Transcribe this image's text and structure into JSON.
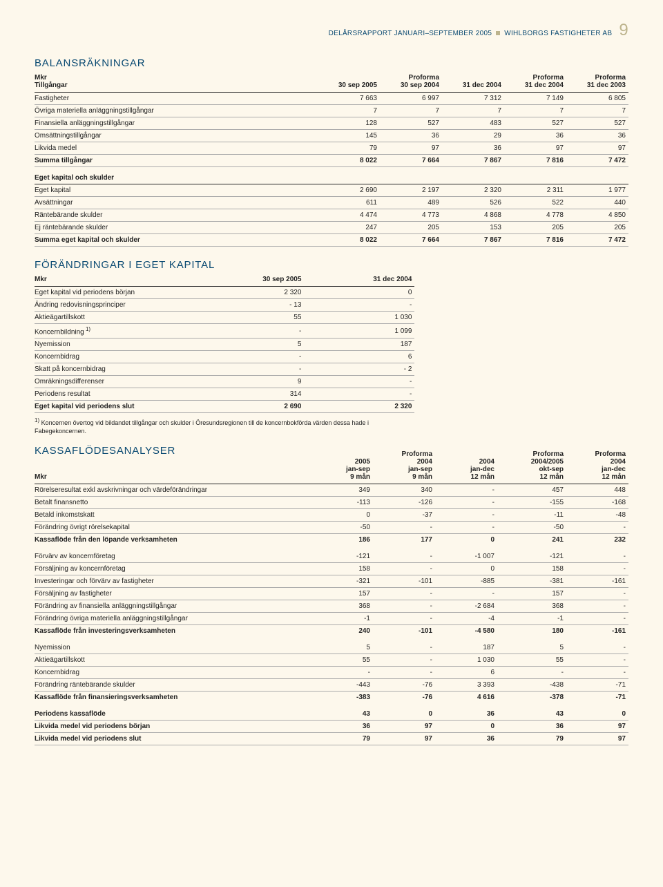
{
  "header": {
    "left": "DELÅRSRAPPORT JANUARI–SEPTEMBER 2005",
    "right": "WIHLBORGS FASTIGHETER AB",
    "page": "9"
  },
  "balans": {
    "title": "BALANSRÄKNINGAR",
    "head": {
      "r1": [
        "Mkr",
        "",
        "Proforma",
        "",
        "Proforma",
        "Proforma"
      ],
      "r2": [
        "Tillgångar",
        "30 sep 2005",
        "30 sep 2004",
        "31 dec 2004",
        "31 dec 2004",
        "31 dec 2003"
      ]
    },
    "rows": [
      {
        "l": "Fastigheter",
        "v": [
          "7 663",
          "6 997",
          "7 312",
          "7 149",
          "6 805"
        ]
      },
      {
        "l": "Övriga materiella anläggningstillgångar",
        "v": [
          "7",
          "7",
          "7",
          "7",
          "7"
        ]
      },
      {
        "l": "Finansiella anläggningstillgångar",
        "v": [
          "128",
          "527",
          "483",
          "527",
          "527"
        ]
      },
      {
        "l": "Omsättningstillgångar",
        "v": [
          "145",
          "36",
          "29",
          "36",
          "36"
        ]
      },
      {
        "l": "Likvida medel",
        "v": [
          "79",
          "97",
          "36",
          "97",
          "97"
        ]
      },
      {
        "l": "Summa tillgångar",
        "v": [
          "8 022",
          "7 664",
          "7 867",
          "7 816",
          "7 472"
        ],
        "bold": true
      }
    ],
    "section2_header": "Eget kapital och skulder",
    "rows2": [
      {
        "l": "Eget kapital",
        "v": [
          "2 690",
          "2 197",
          "2 320",
          "2 311",
          "1 977"
        ]
      },
      {
        "l": "Avsättningar",
        "v": [
          "611",
          "489",
          "526",
          "522",
          "440"
        ]
      },
      {
        "l": "Räntebärande skulder",
        "v": [
          "4 474",
          "4 773",
          "4 868",
          "4 778",
          "4 850"
        ]
      },
      {
        "l": "Ej räntebärande skulder",
        "v": [
          "247",
          "205",
          "153",
          "205",
          "205"
        ]
      },
      {
        "l": "Summa eget kapital och skulder",
        "v": [
          "8 022",
          "7 664",
          "7 867",
          "7 816",
          "7 472"
        ],
        "bold": true
      }
    ]
  },
  "forandringar": {
    "title": "FÖRÄNDRINGAR I EGET KAPITAL",
    "head": [
      "Mkr",
      "30 sep 2005",
      "31 dec 2004"
    ],
    "rows": [
      {
        "l": "Eget kapital vid periodens början",
        "v": [
          "2 320",
          "0"
        ]
      },
      {
        "l": "Ändring redovisningsprinciper",
        "v": [
          "- 13",
          "-"
        ]
      },
      {
        "l": "Aktieägartillskott",
        "v": [
          "55",
          "1 030"
        ]
      },
      {
        "l": "Koncernbildning",
        "sup": "1)",
        "v": [
          "-",
          "1 099"
        ]
      },
      {
        "l": "Nyemission",
        "v": [
          "5",
          "187"
        ]
      },
      {
        "l": "Koncernbidrag",
        "v": [
          "-",
          "6"
        ]
      },
      {
        "l": "Skatt på koncernbidrag",
        "v": [
          "-",
          "- 2"
        ]
      },
      {
        "l": "Omräkningsdifferenser",
        "v": [
          "9",
          "-"
        ]
      },
      {
        "l": "Periodens resultat",
        "v": [
          "314",
          "-"
        ]
      },
      {
        "l": "Eget kapital vid periodens slut",
        "v": [
          "2 690",
          "2 320"
        ],
        "bold": true
      }
    ],
    "footnote_sup": "1)",
    "footnote": "Koncernen övertog vid bildandet tillgångar och skulder i Öresundsregionen till de koncernbokförda värden dessa hade i Fabegekoncernen."
  },
  "kassa": {
    "title": "KASSAFLÖDESANALYSER",
    "head": {
      "r1": [
        "",
        "2005",
        "Proforma",
        "",
        "Proforma",
        "Proforma"
      ],
      "r2": [
        "",
        "jan-sep",
        "2004",
        "2004",
        "2004/2005",
        "2004"
      ],
      "r3": [
        "",
        "9 mån",
        "jan-sep",
        "jan-dec",
        "okt-sep",
        "jan-dec"
      ],
      "r4": [
        "Mkr",
        "",
        "9 mån",
        "12 mån",
        "12 mån",
        "12 mån"
      ]
    },
    "rows": [
      {
        "l": "Rörelseresultat exkl avskrivningar och värdeförändringar",
        "v": [
          "349",
          "340",
          "-",
          "457",
          "448"
        ]
      },
      {
        "l": "Betalt finansnetto",
        "v": [
          "-113",
          "-126",
          "-",
          "-155",
          "-168"
        ]
      },
      {
        "l": "Betald inkomstskatt",
        "v": [
          "0",
          "-37",
          "-",
          "-11",
          "-48"
        ]
      },
      {
        "l": "Förändring övrigt rörelsekapital",
        "v": [
          "-50",
          "-",
          "-",
          "-50",
          "-"
        ]
      },
      {
        "l": "Kassaflöde från den löpande verksamheten",
        "v": [
          "186",
          "177",
          "0",
          "241",
          "232"
        ],
        "bold": true,
        "gap": true
      },
      {
        "l": "Förvärv av koncernföretag",
        "v": [
          "-121",
          "-",
          "-1 007",
          "-121",
          "-"
        ]
      },
      {
        "l": "Försäljning av koncernföretag",
        "v": [
          "158",
          "-",
          "0",
          "158",
          "-"
        ]
      },
      {
        "l": "Investeringar och förvärv av fastigheter",
        "v": [
          "-321",
          "-101",
          "-885",
          "-381",
          "-161"
        ]
      },
      {
        "l": "Försäljning av fastigheter",
        "v": [
          "157",
          "-",
          "-",
          "157",
          "-"
        ]
      },
      {
        "l": "Förändring av finansiella anläggningstillgångar",
        "v": [
          "368",
          "-",
          "-2 684",
          "368",
          "-"
        ]
      },
      {
        "l": "Förändring övriga materiella anläggningstillgångar",
        "v": [
          "-1",
          "-",
          "-4",
          "-1",
          "-"
        ]
      },
      {
        "l": "Kassaflöde från investeringsverksamheten",
        "v": [
          "240",
          "-101",
          "-4 580",
          "180",
          "-161"
        ],
        "bold": true,
        "gap": true
      },
      {
        "l": "Nyemission",
        "v": [
          "5",
          "-",
          "187",
          "5",
          "-"
        ]
      },
      {
        "l": "Aktieägartillskott",
        "v": [
          "55",
          "-",
          "1 030",
          "55",
          "-"
        ]
      },
      {
        "l": "Koncernbidrag",
        "v": [
          "-",
          "-",
          "6",
          "-",
          "-"
        ]
      },
      {
        "l": "Förändring räntebärande skulder",
        "v": [
          "-443",
          "-76",
          "3 393",
          "-438",
          "-71"
        ]
      },
      {
        "l": "Kassaflöde från finansieringsverksamheten",
        "v": [
          "-383",
          "-76",
          "4 616",
          "-378",
          "-71"
        ],
        "bold": true,
        "gap": true
      },
      {
        "l": "Periodens kassaflöde",
        "v": [
          "43",
          "0",
          "36",
          "43",
          "0"
        ],
        "bold": true
      },
      {
        "l": "Likvida medel vid periodens början",
        "v": [
          "36",
          "97",
          "0",
          "36",
          "97"
        ],
        "bold": true
      },
      {
        "l": "Likvida medel vid periodens slut",
        "v": [
          "79",
          "97",
          "36",
          "79",
          "97"
        ],
        "bold": true
      }
    ]
  }
}
